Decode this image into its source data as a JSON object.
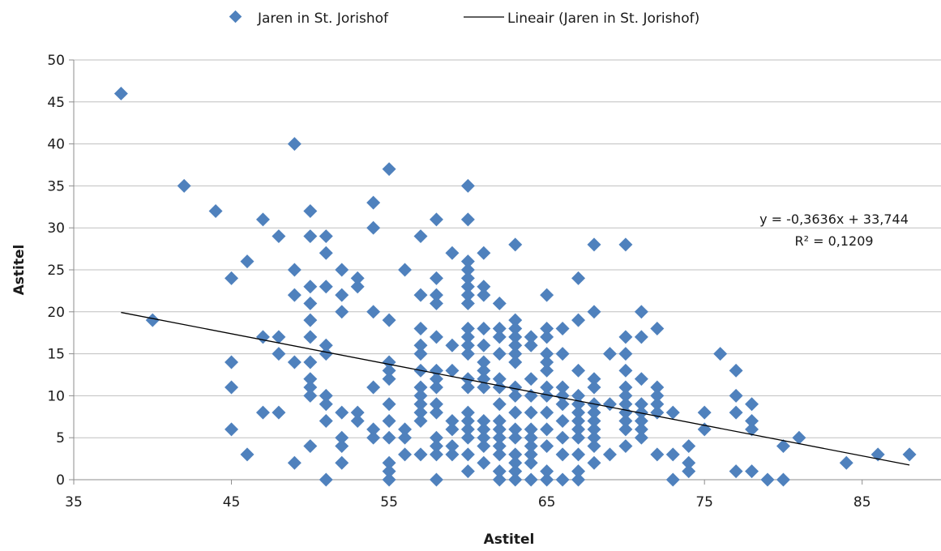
{
  "chart_data": {
    "type": "scatter",
    "xlabel": "Astitel",
    "ylabel": "Astitel",
    "xlim": [
      35,
      90
    ],
    "ylim": [
      0,
      50
    ],
    "x_ticks": [
      35,
      45,
      55,
      65,
      75,
      85
    ],
    "y_ticks": [
      0,
      5,
      10,
      15,
      20,
      25,
      30,
      35,
      40,
      45,
      50
    ],
    "grid": "horizontal",
    "legend_position": "top",
    "colors": {
      "points": "#4f81bd",
      "trendline": "#000000",
      "grid": "#bfbfbf"
    },
    "series": [
      {
        "name": "Jaren in St. Jorishof",
        "type": "scatter",
        "marker": "diamond",
        "points": [
          [
            38,
            46
          ],
          [
            40,
            19
          ],
          [
            42,
            35
          ],
          [
            44,
            32
          ],
          [
            45,
            24
          ],
          [
            45,
            14
          ],
          [
            45,
            11
          ],
          [
            45,
            6
          ],
          [
            46,
            26
          ],
          [
            46,
            3
          ],
          [
            47,
            31
          ],
          [
            47,
            17
          ],
          [
            47,
            8
          ],
          [
            48,
            29
          ],
          [
            48,
            17
          ],
          [
            48,
            15
          ],
          [
            48,
            8
          ],
          [
            49,
            40
          ],
          [
            49,
            25
          ],
          [
            49,
            22
          ],
          [
            49,
            14
          ],
          [
            49,
            2
          ],
          [
            50,
            32
          ],
          [
            50,
            29
          ],
          [
            50,
            23
          ],
          [
            50,
            21
          ],
          [
            50,
            19
          ],
          [
            50,
            17
          ],
          [
            50,
            14
          ],
          [
            50,
            12
          ],
          [
            50,
            11
          ],
          [
            50,
            10
          ],
          [
            50,
            4
          ],
          [
            51,
            29
          ],
          [
            51,
            27
          ],
          [
            51,
            23
          ],
          [
            51,
            16
          ],
          [
            51,
            15
          ],
          [
            51,
            10
          ],
          [
            51,
            9
          ],
          [
            51,
            7
          ],
          [
            51,
            0
          ],
          [
            52,
            25
          ],
          [
            52,
            22
          ],
          [
            52,
            20
          ],
          [
            52,
            8
          ],
          [
            52,
            5
          ],
          [
            52,
            4
          ],
          [
            52,
            2
          ],
          [
            53,
            24
          ],
          [
            53,
            23
          ],
          [
            53,
            8
          ],
          [
            53,
            7
          ],
          [
            54,
            33
          ],
          [
            54,
            30
          ],
          [
            54,
            20
          ],
          [
            54,
            11
          ],
          [
            54,
            6
          ],
          [
            54,
            5
          ],
          [
            55,
            37
          ],
          [
            55,
            19
          ],
          [
            55,
            14
          ],
          [
            55,
            13
          ],
          [
            55,
            12
          ],
          [
            55,
            9
          ],
          [
            55,
            7
          ],
          [
            55,
            5
          ],
          [
            55,
            2
          ],
          [
            55,
            1
          ],
          [
            55,
            0
          ],
          [
            56,
            25
          ],
          [
            56,
            6
          ],
          [
            56,
            5
          ],
          [
            56,
            3
          ],
          [
            57,
            29
          ],
          [
            57,
            22
          ],
          [
            57,
            18
          ],
          [
            57,
            16
          ],
          [
            57,
            15
          ],
          [
            57,
            13
          ],
          [
            57,
            11
          ],
          [
            57,
            10
          ],
          [
            57,
            9
          ],
          [
            57,
            8
          ],
          [
            57,
            7
          ],
          [
            57,
            3
          ],
          [
            58,
            31
          ],
          [
            58,
            24
          ],
          [
            58,
            22
          ],
          [
            58,
            21
          ],
          [
            58,
            17
          ],
          [
            58,
            13
          ],
          [
            58,
            12
          ],
          [
            58,
            11
          ],
          [
            58,
            9
          ],
          [
            58,
            8
          ],
          [
            58,
            5
          ],
          [
            58,
            4
          ],
          [
            58,
            3
          ],
          [
            58,
            0
          ],
          [
            59,
            27
          ],
          [
            59,
            16
          ],
          [
            59,
            13
          ],
          [
            59,
            7
          ],
          [
            59,
            6
          ],
          [
            59,
            4
          ],
          [
            59,
            3
          ],
          [
            60,
            35
          ],
          [
            60,
            31
          ],
          [
            60,
            26
          ],
          [
            60,
            25
          ],
          [
            60,
            24
          ],
          [
            60,
            23
          ],
          [
            60,
            22
          ],
          [
            60,
            21
          ],
          [
            60,
            18
          ],
          [
            60,
            17
          ],
          [
            60,
            16
          ],
          [
            60,
            15
          ],
          [
            60,
            12
          ],
          [
            60,
            11
          ],
          [
            60,
            8
          ],
          [
            60,
            7
          ],
          [
            60,
            6
          ],
          [
            60,
            5
          ],
          [
            60,
            3
          ],
          [
            60,
            1
          ],
          [
            61,
            27
          ],
          [
            61,
            23
          ],
          [
            61,
            22
          ],
          [
            61,
            18
          ],
          [
            61,
            16
          ],
          [
            61,
            14
          ],
          [
            61,
            13
          ],
          [
            61,
            12
          ],
          [
            61,
            11
          ],
          [
            61,
            7
          ],
          [
            61,
            6
          ],
          [
            61,
            5
          ],
          [
            61,
            4
          ],
          [
            61,
            2
          ],
          [
            62,
            21
          ],
          [
            62,
            18
          ],
          [
            62,
            17
          ],
          [
            62,
            15
          ],
          [
            62,
            12
          ],
          [
            62,
            11
          ],
          [
            62,
            9
          ],
          [
            62,
            7
          ],
          [
            62,
            6
          ],
          [
            62,
            5
          ],
          [
            62,
            4
          ],
          [
            62,
            3
          ],
          [
            62,
            1
          ],
          [
            62,
            0
          ],
          [
            63,
            28
          ],
          [
            63,
            19
          ],
          [
            63,
            18
          ],
          [
            63,
            17
          ],
          [
            63,
            16
          ],
          [
            63,
            15
          ],
          [
            63,
            14
          ],
          [
            63,
            11
          ],
          [
            63,
            10
          ],
          [
            63,
            8
          ],
          [
            63,
            6
          ],
          [
            63,
            5
          ],
          [
            63,
            3
          ],
          [
            63,
            2
          ],
          [
            63,
            1
          ],
          [
            63,
            0
          ],
          [
            64,
            17
          ],
          [
            64,
            16
          ],
          [
            64,
            12
          ],
          [
            64,
            10
          ],
          [
            64,
            8
          ],
          [
            64,
            6
          ],
          [
            64,
            5
          ],
          [
            64,
            4
          ],
          [
            64,
            3
          ],
          [
            64,
            2
          ],
          [
            64,
            0
          ],
          [
            65,
            22
          ],
          [
            65,
            18
          ],
          [
            65,
            17
          ],
          [
            65,
            15
          ],
          [
            65,
            14
          ],
          [
            65,
            13
          ],
          [
            65,
            11
          ],
          [
            65,
            10
          ],
          [
            65,
            8
          ],
          [
            65,
            6
          ],
          [
            65,
            4
          ],
          [
            65,
            1
          ],
          [
            65,
            0
          ],
          [
            66,
            18
          ],
          [
            66,
            15
          ],
          [
            66,
            11
          ],
          [
            66,
            10
          ],
          [
            66,
            9
          ],
          [
            66,
            7
          ],
          [
            66,
            5
          ],
          [
            66,
            3
          ],
          [
            66,
            0
          ],
          [
            67,
            24
          ],
          [
            67,
            19
          ],
          [
            67,
            13
          ],
          [
            67,
            10
          ],
          [
            67,
            9
          ],
          [
            67,
            8
          ],
          [
            67,
            7
          ],
          [
            67,
            6
          ],
          [
            67,
            5
          ],
          [
            67,
            3
          ],
          [
            67,
            1
          ],
          [
            67,
            0
          ],
          [
            68,
            28
          ],
          [
            68,
            20
          ],
          [
            68,
            12
          ],
          [
            68,
            11
          ],
          [
            68,
            9
          ],
          [
            68,
            8
          ],
          [
            68,
            7
          ],
          [
            68,
            6
          ],
          [
            68,
            5
          ],
          [
            68,
            4
          ],
          [
            68,
            2
          ],
          [
            69,
            15
          ],
          [
            69,
            9
          ],
          [
            69,
            3
          ],
          [
            70,
            28
          ],
          [
            70,
            17
          ],
          [
            70,
            15
          ],
          [
            70,
            13
          ],
          [
            70,
            11
          ],
          [
            70,
            10
          ],
          [
            70,
            9
          ],
          [
            70,
            8
          ],
          [
            70,
            7
          ],
          [
            70,
            6
          ],
          [
            70,
            4
          ],
          [
            71,
            20
          ],
          [
            71,
            17
          ],
          [
            71,
            12
          ],
          [
            71,
            9
          ],
          [
            71,
            8
          ],
          [
            71,
            7
          ],
          [
            71,
            6
          ],
          [
            71,
            5
          ],
          [
            72,
            18
          ],
          [
            72,
            11
          ],
          [
            72,
            10
          ],
          [
            72,
            9
          ],
          [
            72,
            8
          ],
          [
            72,
            3
          ],
          [
            73,
            8
          ],
          [
            73,
            3
          ],
          [
            73,
            0
          ],
          [
            74,
            4
          ],
          [
            74,
            2
          ],
          [
            74,
            1
          ],
          [
            75,
            8
          ],
          [
            75,
            6
          ],
          [
            76,
            15
          ],
          [
            77,
            13
          ],
          [
            77,
            10
          ],
          [
            77,
            8
          ],
          [
            77,
            1
          ],
          [
            78,
            9
          ],
          [
            78,
            7
          ],
          [
            78,
            6
          ],
          [
            78,
            1
          ],
          [
            79,
            0
          ],
          [
            80,
            4
          ],
          [
            80,
            0
          ],
          [
            81,
            5
          ],
          [
            84,
            2
          ],
          [
            86,
            3
          ],
          [
            88,
            3
          ]
        ]
      },
      {
        "name": "Lineair (Jaren in St. Jorishof)",
        "type": "line",
        "slope": -0.3636,
        "intercept": 33.744,
        "x_range": [
          38,
          88
        ]
      }
    ],
    "annotations": {
      "equation": "y = -0,3636x + 33,744",
      "r_squared": "R² = 0,1209"
    }
  }
}
